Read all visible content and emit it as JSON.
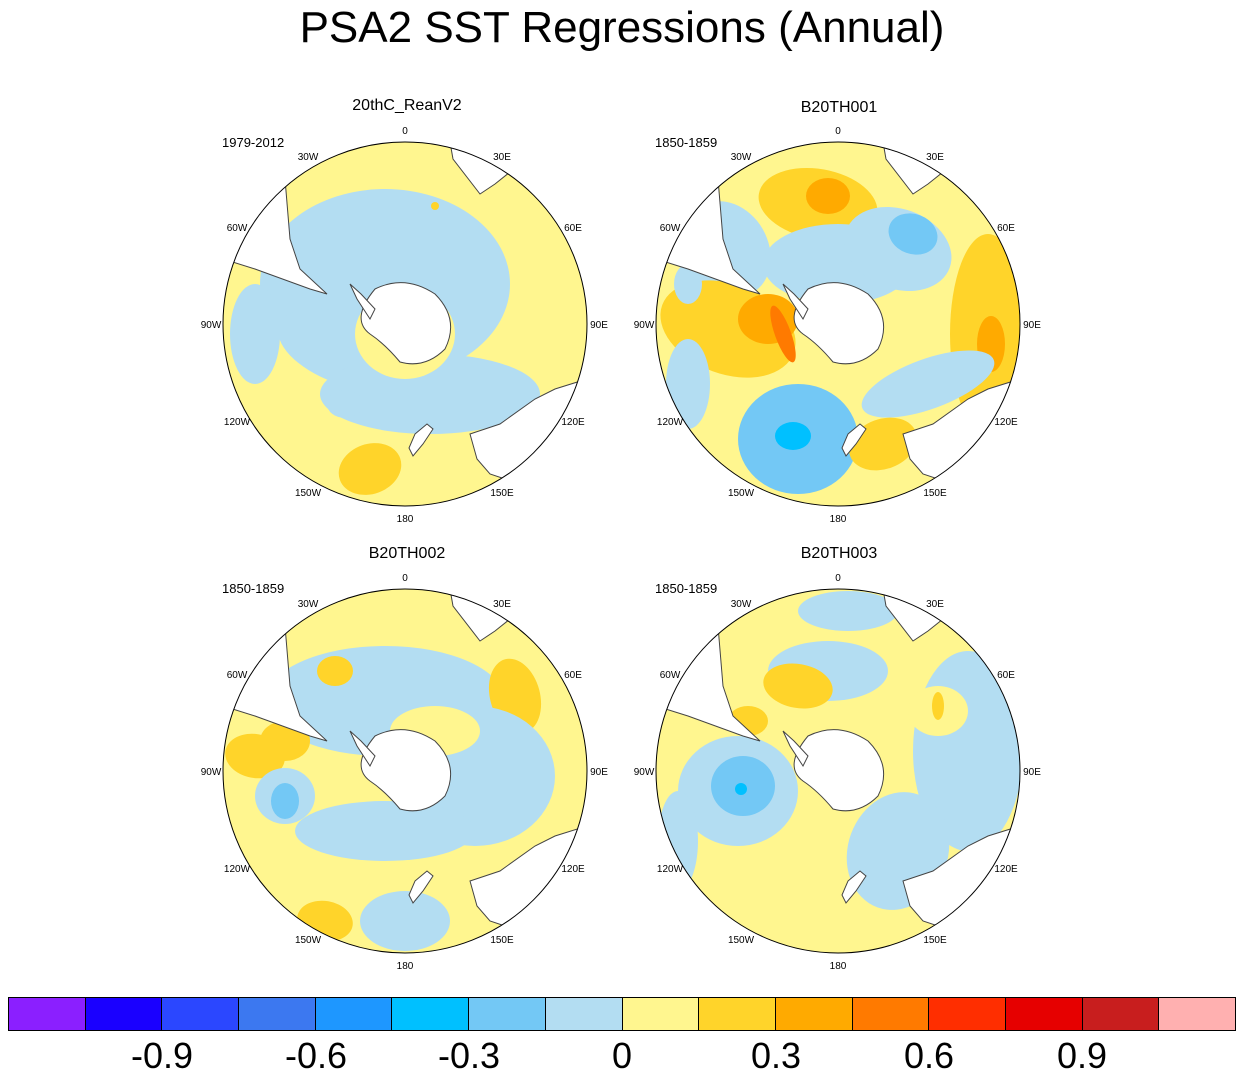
{
  "title": "PSA2 SST Regressions (Annual)",
  "colors": {
    "levels": [
      "#8b1fff",
      "#1a00ff",
      "#2b47ff",
      "#3c78f0",
      "#1e97ff",
      "#00c0ff",
      "#73c8f5",
      "#b3ddf2",
      "#fff68f",
      "#ffd42a",
      "#ffaa00",
      "#ff7a00",
      "#ff2e00",
      "#e60000",
      "#c81e1e",
      "#ffb0b0"
    ],
    "land": "#ffffff",
    "coast": "#444444"
  },
  "longitude_labels": [
    "0",
    "30E",
    "60E",
    "90E",
    "120E",
    "150E",
    "180",
    "150W",
    "120W",
    "90W",
    "60W",
    "30W"
  ],
  "panels": [
    {
      "title": "20thC_ReanV2",
      "period": "1979-2012"
    },
    {
      "title": "B20TH001",
      "period": "1850-1859"
    },
    {
      "title": "B20TH002",
      "period": "1850-1859"
    },
    {
      "title": "B20TH003",
      "period": "1850-1859"
    }
  ],
  "colorbar": {
    "tick_labels": [
      "-0.9",
      "-0.6",
      "-0.3",
      "0",
      "0.3",
      "0.6",
      "0.9"
    ]
  }
}
